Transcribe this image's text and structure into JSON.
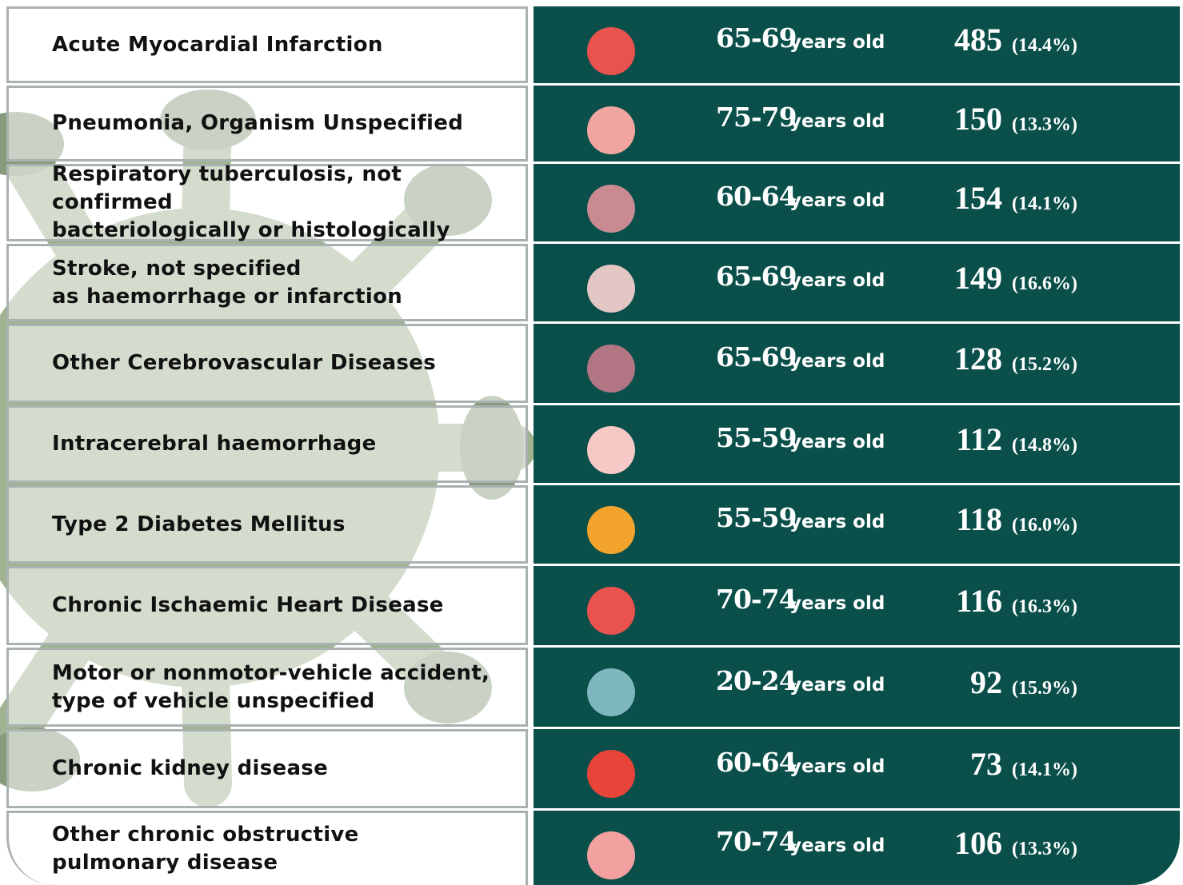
{
  "table": {
    "age_suffix": "years old",
    "rows": [
      {
        "disease": [
          "Acute Myocardial Infarction"
        ],
        "age": "65-69",
        "count": 485,
        "percent": "(14.4%)"
      },
      {
        "disease": [
          "Pneumonia, Organism Unspecified"
        ],
        "age": "75-79",
        "count": 150,
        "percent": "(13.3%)"
      },
      {
        "disease": [
          "Respiratory tuberculosis, not confirmed",
          "bacteriologically or histologically"
        ],
        "age": "60-64",
        "count": 154,
        "percent": "(14.1%)"
      },
      {
        "disease": [
          "Stroke, not specified",
          "as haemorrhage or infarction"
        ],
        "age": "65-69",
        "count": 149,
        "percent": "(16.6%)"
      },
      {
        "disease": [
          "Other Cerebrovascular Diseases"
        ],
        "age": "65-69",
        "count": 128,
        "percent": "(15.2%)"
      },
      {
        "disease": [
          "Intracerebral haemorrhage"
        ],
        "age": "55-59",
        "count": 112,
        "percent": "(14.8%)"
      },
      {
        "disease": [
          "Type 2 Diabetes Mellitus"
        ],
        "age": "55-59",
        "count": 118,
        "percent": "(16.0%)"
      },
      {
        "disease": [
          "Chronic Ischaemic Heart Disease"
        ],
        "age": "70-74",
        "count": 116,
        "percent": "(16.3%)"
      },
      {
        "disease": [
          "Motor or nonmotor-vehicle accident,",
          "type of vehicle unspecified"
        ],
        "age": "20-24",
        "count": 92,
        "percent": "(15.9%)"
      },
      {
        "disease": [
          "Chronic kidney disease"
        ],
        "age": "60-64",
        "count": 73,
        "percent": "(14.1%)"
      },
      {
        "disease": [
          "Other chronic obstructive",
          "pulmonary disease"
        ],
        "age": "70-74",
        "count": 106,
        "percent": "(13.3%)"
      }
    ]
  }
}
